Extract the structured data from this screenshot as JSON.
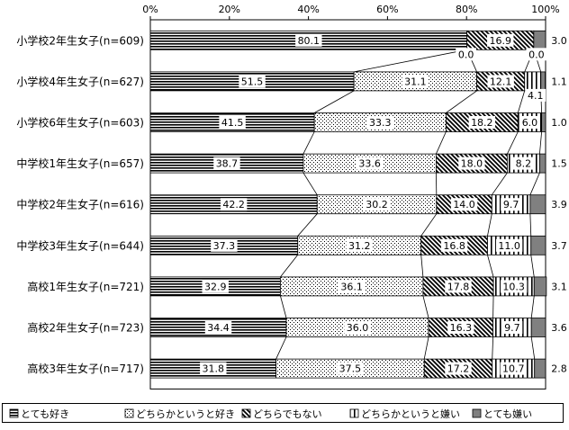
{
  "chart_data": {
    "type": "bar",
    "orientation": "horizontal",
    "stacked": "percent",
    "title": "",
    "xlabel": "",
    "ylabel": "",
    "xlim": [
      0,
      100
    ],
    "x_ticks": [
      "0%",
      "20%",
      "40%",
      "60%",
      "80%",
      "100%"
    ],
    "categories": [
      "小学校2年生女子(n=609)",
      "小学校4年生女子(n=627)",
      "小学校6年生女子(n=603)",
      "中学校1年生女子(n=657)",
      "中学校2年生女子(n=616)",
      "中学校3年生女子(n=644)",
      "高校1年生女子(n=721)",
      "高校2年生女子(n=723)",
      "高校3年生女子(n=717)"
    ],
    "series": [
      {
        "name": "とても好き",
        "pattern": "horizontal-lines",
        "color": "#000000",
        "values": [
          80.1,
          51.5,
          41.5,
          38.7,
          42.2,
          37.3,
          32.9,
          34.4,
          31.8
        ]
      },
      {
        "name": "どちらかというと好き",
        "pattern": "dots",
        "color": "#000000",
        "values": [
          0.0,
          31.1,
          33.3,
          33.6,
          30.2,
          31.2,
          36.1,
          36.0,
          37.5
        ]
      },
      {
        "name": "どちらでもない",
        "pattern": "diagonal-lines",
        "color": "#000000",
        "values": [
          16.9,
          12.1,
          18.2,
          18.0,
          14.0,
          16.8,
          17.8,
          16.3,
          17.2
        ]
      },
      {
        "name": "どちらかというと嫌い",
        "pattern": "vertical-lines",
        "color": "#000000",
        "values": [
          0.0,
          4.1,
          6.0,
          8.2,
          9.7,
          11.0,
          10.3,
          9.7,
          10.7
        ]
      },
      {
        "name": "とても嫌い",
        "pattern": "solid",
        "color": "#808080",
        "values": [
          3.0,
          1.1,
          1.0,
          1.5,
          3.9,
          3.7,
          3.1,
          3.6,
          2.8
        ]
      }
    ],
    "data_labels": [
      [
        "80.1",
        "0.0",
        "16.9",
        "0.0",
        "3.0"
      ],
      [
        "51.5",
        "31.1",
        "12.1",
        "4.1",
        "1.1"
      ],
      [
        "41.5",
        "33.3",
        "18.2",
        "6.0",
        "1.0"
      ],
      [
        "38.7",
        "33.6",
        "18.0",
        "8.2",
        "1.5"
      ],
      [
        "42.2",
        "30.2",
        "14.0",
        "9.7",
        "3.9"
      ],
      [
        "37.3",
        "31.2",
        "16.8",
        "11.0",
        "3.7"
      ],
      [
        "32.9",
        "36.1",
        "17.8",
        "10.3",
        "3.1"
      ],
      [
        "34.4",
        "36.0",
        "16.3",
        "9.7",
        "3.6"
      ],
      [
        "31.8",
        "37.5",
        "17.2",
        "10.7",
        "2.8"
      ]
    ],
    "series_lines": true,
    "grid": false,
    "legend_position": "bottom"
  }
}
